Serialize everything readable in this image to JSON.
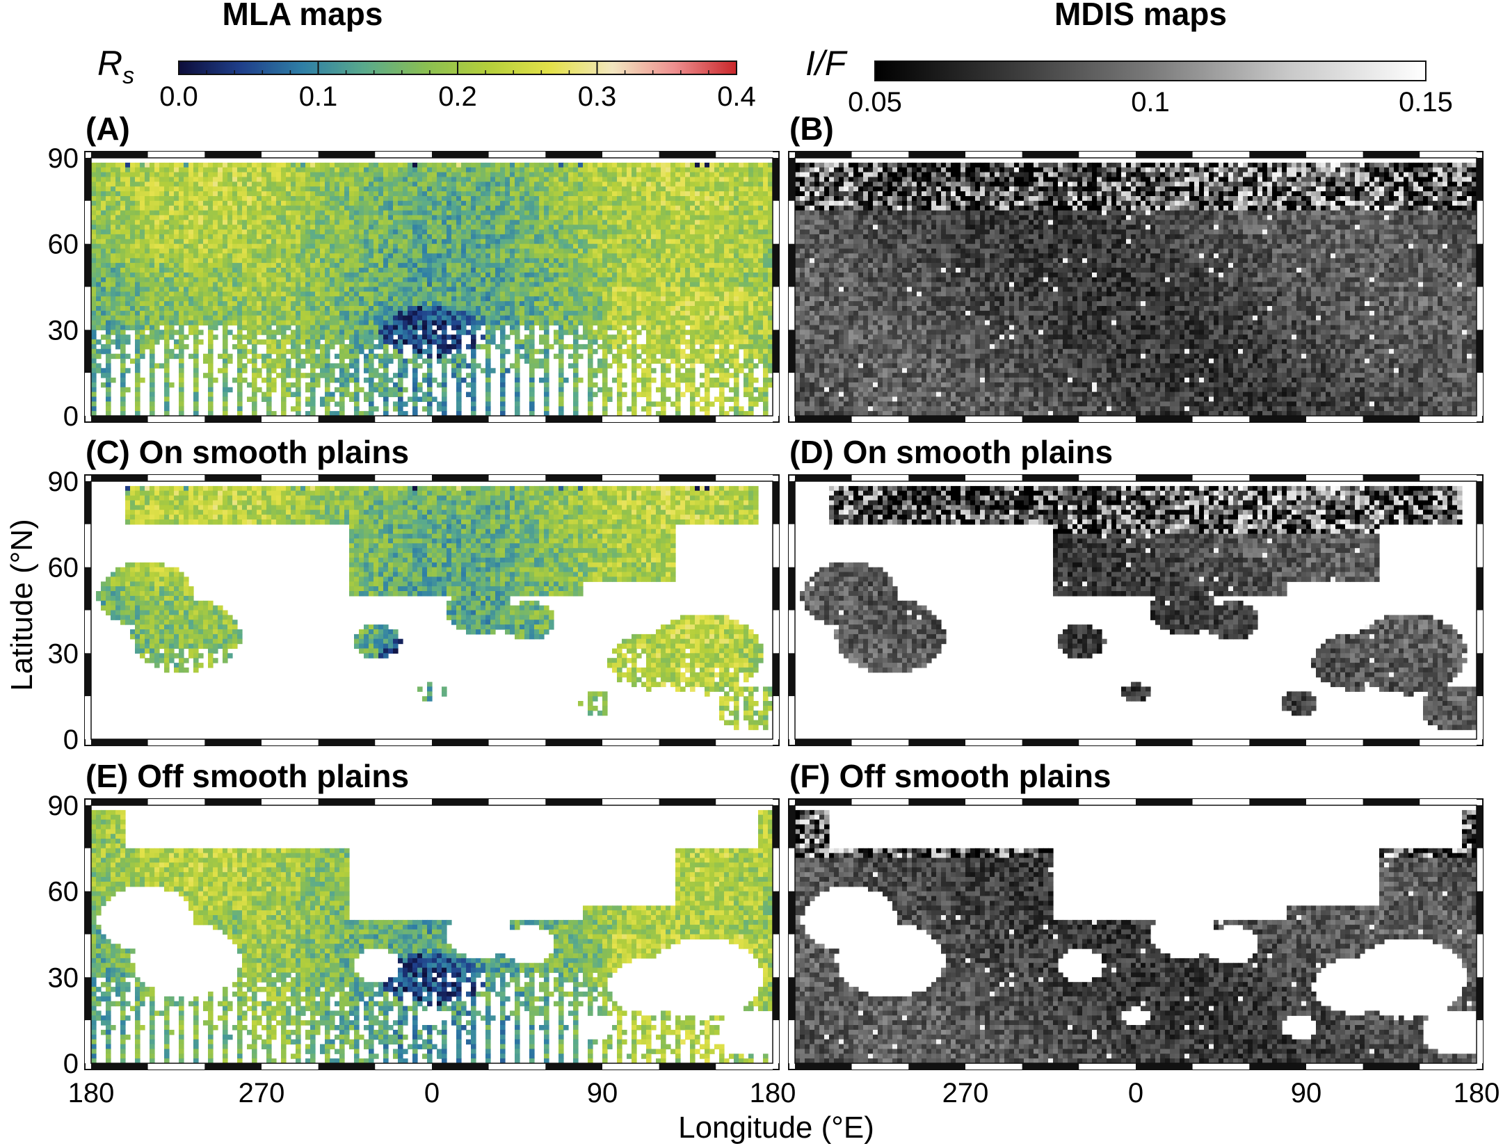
{
  "figure": {
    "left_heading": "MLA maps",
    "right_heading": "MDIS maps",
    "ylabel": "Latitude (°N)",
    "xlabel": "Longitude (°E)"
  },
  "colorbars": [
    {
      "name": "mla",
      "label": "R",
      "label_sub": "s",
      "range": [
        0,
        0.4
      ],
      "ticks": [
        "0.0",
        "0.1",
        "0.2",
        "0.3",
        "0.4"
      ],
      "tick_values": [
        0,
        0.1,
        0.2,
        0.3,
        0.4
      ],
      "minor_step": 0.02,
      "stops": [
        "#0d0d3a",
        "#1f3f8a",
        "#2f7fa6",
        "#5aaa8c",
        "#8bbf52",
        "#b5cf3b",
        "#e4e24a",
        "#f2e6c0",
        "#ee8f8f",
        "#c9262a"
      ]
    },
    {
      "name": "mdis",
      "label": "I/F",
      "range": [
        0.05,
        0.15
      ],
      "ticks": [
        "0.05",
        "0.1",
        "0.15"
      ],
      "tick_values": [
        0.05,
        0.1,
        0.15
      ],
      "stops": [
        "#000000",
        "#3a3a3a",
        "#7a7a7a",
        "#c8c8c8",
        "#ffffff"
      ]
    }
  ],
  "chart_data": [
    {
      "type": "heatmap",
      "panel": "A",
      "title": "(A)",
      "colormap": "mla",
      "mask": "all",
      "x_ticks": [
        "180",
        "270",
        "0",
        "90",
        "180"
      ],
      "y_ticks": [
        "0",
        "30",
        "60",
        "90"
      ],
      "ylim": [
        0,
        90
      ]
    },
    {
      "type": "heatmap",
      "panel": "B",
      "title": "(B)",
      "colormap": "mdis",
      "mask": "all",
      "x_ticks": [
        "180",
        "270",
        "0",
        "90",
        "180"
      ],
      "y_ticks": [
        "0",
        "30",
        "60",
        "90"
      ],
      "ylim": [
        0,
        90
      ]
    },
    {
      "type": "heatmap",
      "panel": "C",
      "title": "(C) On smooth plains",
      "colormap": "mla",
      "mask": "on",
      "x_ticks": [
        "180",
        "270",
        "0",
        "90",
        "180"
      ],
      "y_ticks": [
        "0",
        "30",
        "60",
        "90"
      ],
      "ylim": [
        0,
        90
      ]
    },
    {
      "type": "heatmap",
      "panel": "D",
      "title": "(D) On smooth plains",
      "colormap": "mdis",
      "mask": "on",
      "x_ticks": [
        "180",
        "270",
        "0",
        "90",
        "180"
      ],
      "y_ticks": [
        "0",
        "30",
        "60",
        "90"
      ],
      "ylim": [
        0,
        90
      ]
    },
    {
      "type": "heatmap",
      "panel": "E",
      "title": "(E) Off smooth plains",
      "colormap": "mla",
      "mask": "off",
      "x_ticks": [
        "180",
        "270",
        "0",
        "90",
        "180"
      ],
      "y_ticks": [
        "0",
        "30",
        "60",
        "90"
      ],
      "ylim": [
        0,
        90
      ]
    },
    {
      "type": "heatmap",
      "panel": "F",
      "title": "(F) Off smooth plains",
      "colormap": "mdis",
      "mask": "off",
      "x_ticks": [
        "180",
        "270",
        "0",
        "90",
        "180"
      ],
      "y_ticks": [
        "0",
        "30",
        "60",
        "90"
      ],
      "ylim": [
        0,
        90
      ]
    }
  ]
}
